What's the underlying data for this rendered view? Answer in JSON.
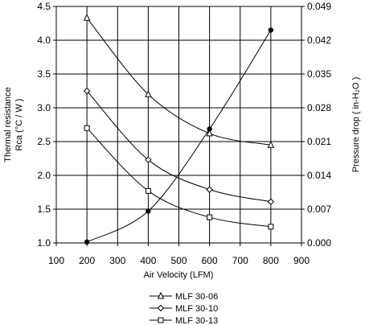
{
  "chart_data": {
    "type": "line",
    "title": "",
    "x_axis": {
      "label": "Air Velocity (LFM)",
      "range": [
        100,
        900
      ],
      "ticks": [
        100,
        200,
        300,
        400,
        500,
        600,
        700,
        800,
        900
      ]
    },
    "y_axis_left": {
      "label_line1": "Thermal resistance",
      "label_line2": "Rca (°C / W )",
      "range": [
        1.0,
        4.5
      ],
      "ticks": [
        1.0,
        1.5,
        2.0,
        2.5,
        3.0,
        3.5,
        4.0,
        4.5
      ],
      "tick_labels": [
        "1.0",
        "1.5",
        "2.0",
        "2.5",
        "3.0",
        "3.5",
        "4.0",
        "4.5"
      ]
    },
    "y_axis_right": {
      "label": "Pressure drop ( in-H₂O )",
      "range": [
        0.0,
        0.049
      ],
      "ticks": [
        0.0,
        0.007,
        0.014,
        0.021,
        0.028,
        0.035,
        0.042,
        0.049
      ],
      "tick_labels": [
        "0.000",
        "0.007",
        "0.014",
        "0.021",
        "0.028",
        "0.035",
        "0.042",
        "0.049"
      ]
    },
    "grid": true,
    "legend_position": "bottom",
    "series": [
      {
        "name": "MLF 30-06",
        "axis": "left",
        "marker": "triangle",
        "x": [
          200,
          400,
          600,
          800
        ],
        "y": [
          4.33,
          3.2,
          2.62,
          2.45
        ]
      },
      {
        "name": "MLF 30-10",
        "axis": "left",
        "marker": "diamond",
        "x": [
          200,
          400,
          600,
          800
        ],
        "y": [
          3.25,
          2.23,
          1.79,
          1.61
        ]
      },
      {
        "name": "MLF 30-13",
        "axis": "left",
        "marker": "square",
        "x": [
          200,
          400,
          600,
          800
        ],
        "y": [
          2.7,
          1.77,
          1.38,
          1.24
        ]
      },
      {
        "name": "",
        "axis": "right",
        "marker": "filled-circle",
        "x": [
          200,
          400,
          600,
          800
        ],
        "y": [
          0.0002,
          0.0066,
          0.0236,
          0.0441
        ]
      }
    ]
  }
}
